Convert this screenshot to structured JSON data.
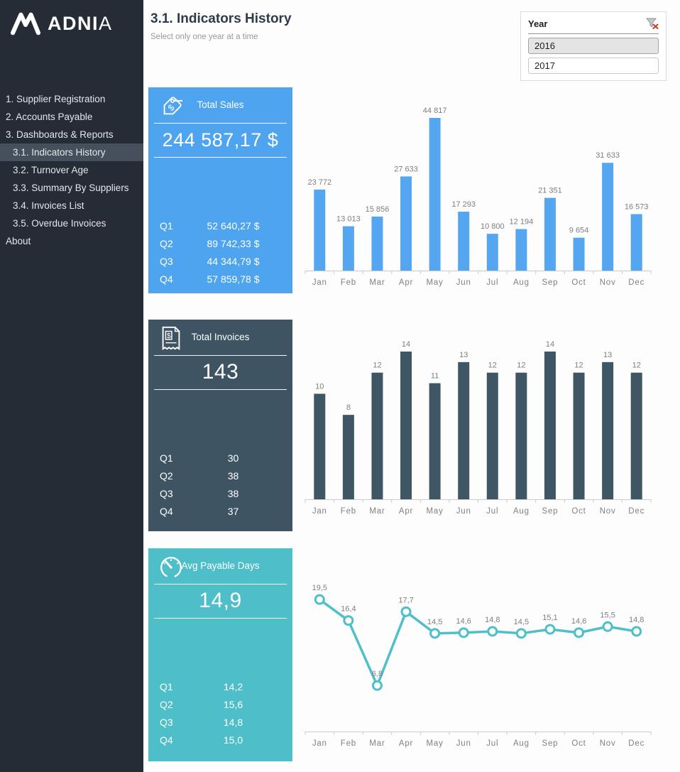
{
  "sidebar": {
    "logo_bold": "ADNI",
    "logo_light": "A",
    "items": [
      {
        "label": "1. Supplier Registration",
        "indent": false,
        "active": false
      },
      {
        "label": "2. Accounts Payable",
        "indent": false,
        "active": false
      },
      {
        "label": "3. Dashboards & Reports",
        "indent": false,
        "active": false
      },
      {
        "label": "3.1. Indicators History",
        "indent": true,
        "active": true
      },
      {
        "label": "3.2. Turnover Age",
        "indent": true,
        "active": false
      },
      {
        "label": "3.3. Summary By Suppliers",
        "indent": true,
        "active": false
      },
      {
        "label": "3.4. Invoices List",
        "indent": true,
        "active": false
      },
      {
        "label": "3.5. Overdue Invoices",
        "indent": true,
        "active": false
      },
      {
        "label": "About",
        "indent": false,
        "active": false
      }
    ]
  },
  "header": {
    "title": "3.1. Indicators History",
    "subtitle": "Select only one year at a time"
  },
  "slicer": {
    "title": "Year",
    "clear_filter_icon": "funnel-with-red-x",
    "options": [
      {
        "label": "2016",
        "selected": true
      },
      {
        "label": "2017",
        "selected": false
      }
    ]
  },
  "cards": [
    {
      "title": "Total Sales",
      "icon": "price-tag-icon",
      "value": "244 587,17 $",
      "color": "#4FA4F0",
      "rows": [
        [
          "Q1",
          "52 640,27 $"
        ],
        [
          "Q2",
          "89 742,33 $"
        ],
        [
          "Q3",
          "44 344,79 $"
        ],
        [
          "Q4",
          "57 859,78 $"
        ]
      ]
    },
    {
      "title": "Total Invoices",
      "icon": "invoice-icon",
      "value": "143",
      "color": "#3E5463",
      "rows": [
        [
          "Q1",
          "30"
        ],
        [
          "Q2",
          "38"
        ],
        [
          "Q3",
          "38"
        ],
        [
          "Q4",
          "37"
        ]
      ]
    },
    {
      "title": "Avg Payable Days",
      "icon": "gauge-icon",
      "value": "14,9",
      "color": "#4EBFC8",
      "rows": [
        [
          "Q1",
          "14,2"
        ],
        [
          "Q2",
          "15,6"
        ],
        [
          "Q3",
          "14,8"
        ],
        [
          "Q4",
          "15,0"
        ]
      ]
    }
  ],
  "chart_data": [
    {
      "name": "monthly-sales-bar-chart",
      "type": "bar",
      "title": "",
      "xlabel": "",
      "ylabel": "",
      "categories": [
        "Jan",
        "Feb",
        "Mar",
        "Apr",
        "May",
        "Jun",
        "Jul",
        "Aug",
        "Sep",
        "Oct",
        "Nov",
        "Dec"
      ],
      "values": [
        23772,
        13013,
        15856,
        27633,
        44817,
        17293,
        10800,
        12194,
        21351,
        9654,
        31633,
        16573
      ],
      "labels": [
        "23 772",
        "13 013",
        "15 856",
        "27 633",
        "44 817",
        "17 293",
        "10 800",
        "12 194",
        "21 351",
        "9 654",
        "31 633",
        "16 573"
      ],
      "color": "#55A6F1",
      "ylim": [
        0,
        47000
      ],
      "grid": false,
      "legend": "none"
    },
    {
      "name": "monthly-invoices-bar-chart",
      "type": "bar",
      "title": "",
      "xlabel": "",
      "ylabel": "",
      "categories": [
        "Jan",
        "Feb",
        "Mar",
        "Apr",
        "May",
        "Jun",
        "Jul",
        "Aug",
        "Sep",
        "Oct",
        "Nov",
        "Dec"
      ],
      "values": [
        10,
        8,
        12,
        14,
        11,
        13,
        12,
        12,
        14,
        12,
        13,
        12
      ],
      "labels": [
        "10",
        "8",
        "12",
        "14",
        "11",
        "13",
        "12",
        "12",
        "14",
        "12",
        "13",
        "12"
      ],
      "color": "#3F5765",
      "ylim": [
        0,
        15
      ],
      "grid": false,
      "legend": "none"
    },
    {
      "name": "avg-payable-days-line-chart",
      "type": "line",
      "title": "",
      "xlabel": "",
      "ylabel": "",
      "categories": [
        "Jan",
        "Feb",
        "Mar",
        "Apr",
        "May",
        "Jun",
        "Jul",
        "Aug",
        "Sep",
        "Oct",
        "Nov",
        "Dec"
      ],
      "values": [
        19.5,
        16.4,
        6.8,
        17.7,
        14.5,
        14.6,
        14.8,
        14.5,
        15.1,
        14.6,
        15.5,
        14.8
      ],
      "labels": [
        "19,5",
        "16,4",
        "6,8",
        "17,7",
        "14,5",
        "14,6",
        "14,8",
        "14,5",
        "15,1",
        "14,6",
        "15,5",
        "14,8"
      ],
      "color": "#4FBFC9",
      "ylim": [
        0,
        21
      ],
      "grid": false,
      "legend": "none"
    }
  ]
}
